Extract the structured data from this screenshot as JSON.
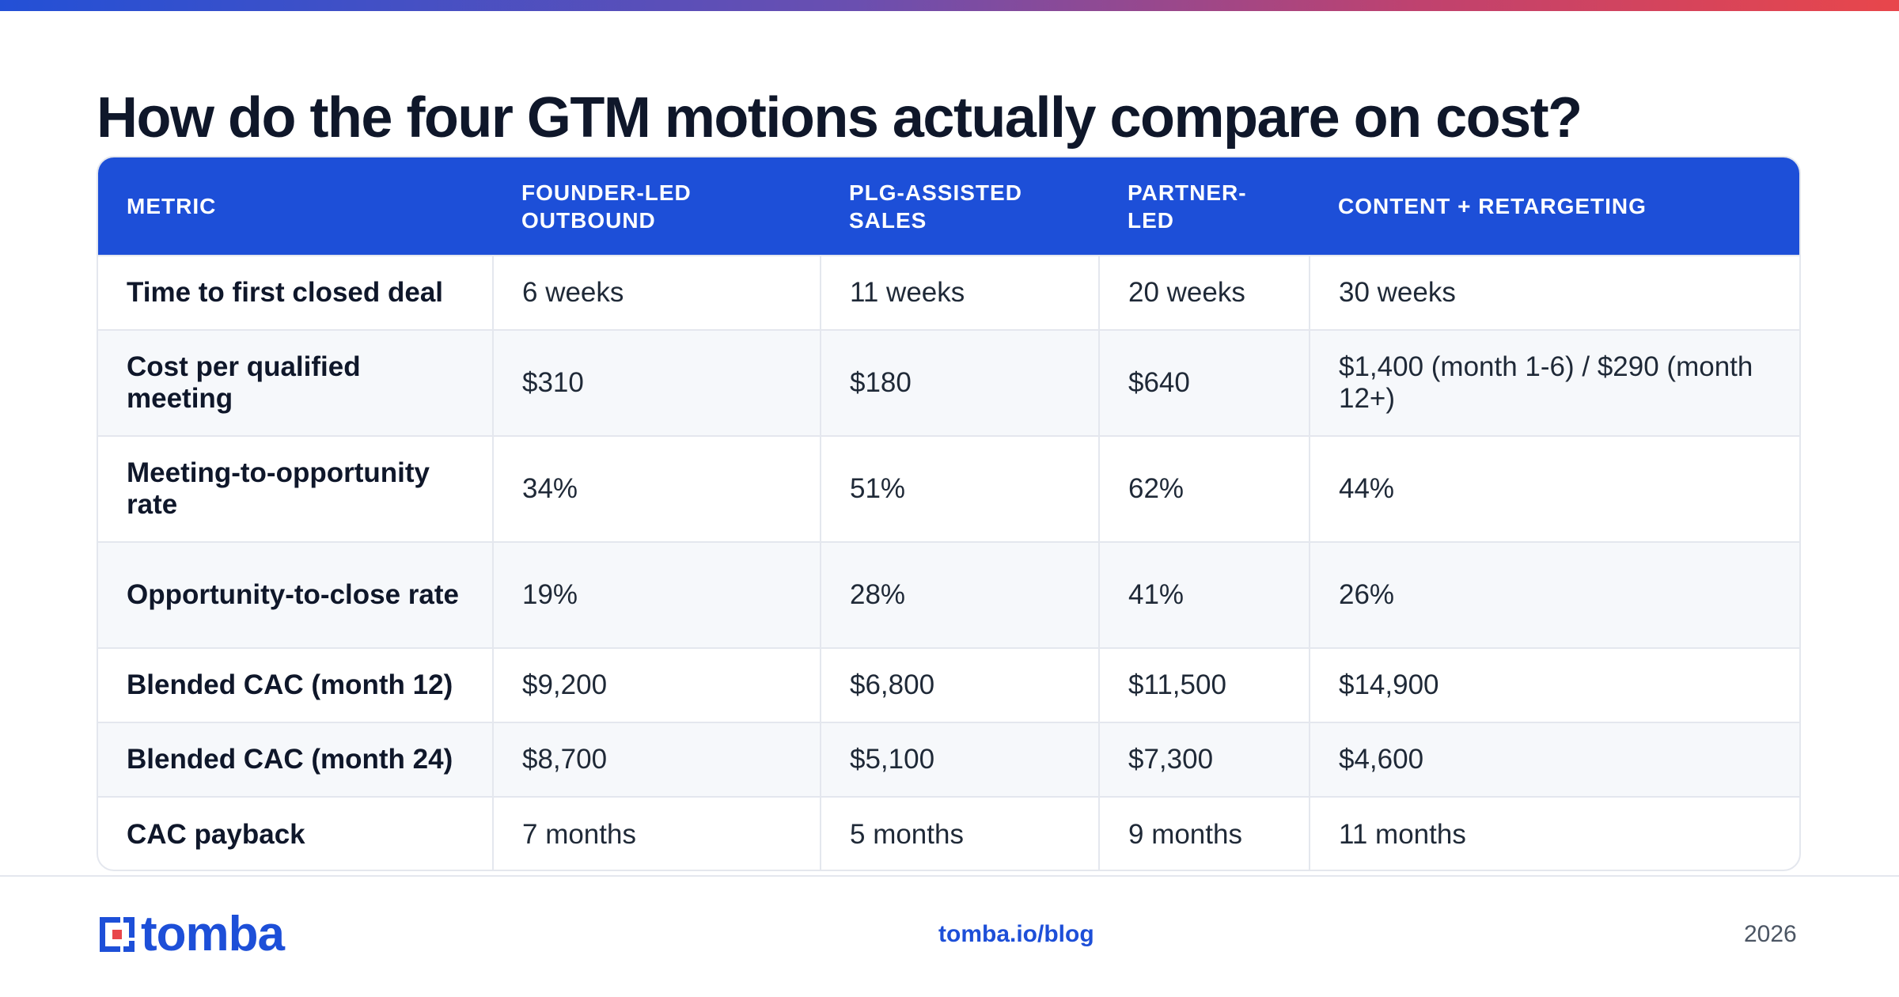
{
  "title": "How do the four GTM motions actually compare on cost?",
  "colors": {
    "header_bg": "#1d4fd8",
    "brand_blue": "#1d4fd8",
    "logo_red": "#e8464b",
    "gradient": [
      "#2350d6",
      "#6a4fb0",
      "#c0426e",
      "#e8464b"
    ]
  },
  "table": {
    "headers": [
      "METRIC",
      "FOUNDER-LED OUTBOUND",
      "PLG-ASSISTED SALES",
      "PARTNER-LED",
      "CONTENT + RETARGETING"
    ],
    "rows": [
      [
        "Time to first closed deal",
        "6 weeks",
        "11 weeks",
        "20 weeks",
        "30 weeks"
      ],
      [
        "Cost per qualified meeting",
        "$310",
        "$180",
        "$640",
        "$1,400 (month 1-6) / $290 (month 12+)"
      ],
      [
        "Meeting-to-opportunity rate",
        "34%",
        "51%",
        "62%",
        "44%"
      ],
      [
        "Opportunity-to-close rate",
        "19%",
        "28%",
        "41%",
        "26%"
      ],
      [
        "Blended CAC (month 12)",
        "$9,200",
        "$6,800",
        "$11,500",
        "$14,900"
      ],
      [
        "Blended CAC (month 24)",
        "$8,700",
        "$5,100",
        "$7,300",
        "$4,600"
      ],
      [
        "CAC payback",
        "7 months",
        "5 months",
        "9 months",
        "11 months"
      ]
    ]
  },
  "footer": {
    "logo_text": "tomba",
    "logo_icon": "tomba-bracket-logo-icon",
    "url": "tomba.io/blog",
    "year": "2026"
  }
}
